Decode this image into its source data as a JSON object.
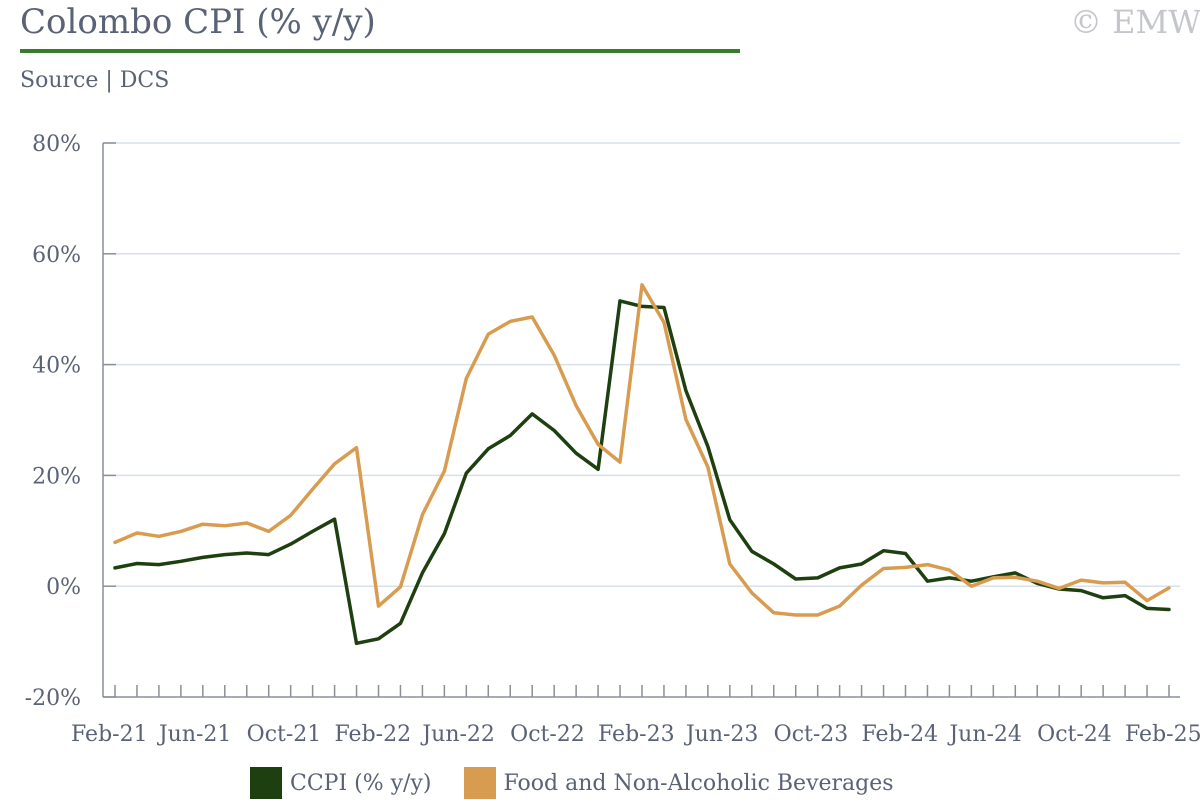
{
  "title": "Colombo CPI (% y/y)",
  "source": "Source | DCS",
  "copyright": "© EMW",
  "colors": {
    "ccpi": "#1e4010",
    "food": "#d89c50",
    "grid": "#d8e0ea",
    "axis": "#8a8f9a",
    "text": "#5a6275",
    "title_rule": "#3a7a2e"
  },
  "chart_data": {
    "type": "line",
    "title": "Colombo CPI (% y/y)",
    "xlabel": "",
    "ylabel": "",
    "ylim": [
      -20,
      80
    ],
    "y_ticks": [
      -20,
      0,
      20,
      40,
      60,
      80
    ],
    "y_tick_labels": [
      "-20%",
      "0%",
      "20%",
      "40%",
      "60%",
      "80%"
    ],
    "x_tick_labels": [
      "Feb-21",
      "Jun-21",
      "Oct-21",
      "Feb-22",
      "Jun-22",
      "Oct-22",
      "Feb-23",
      "Jun-23",
      "Oct-23",
      "Feb-24",
      "Jun-24",
      "Oct-24",
      "Feb-25"
    ],
    "grid": true,
    "legend_position": "bottom",
    "x": [
      "Feb-21",
      "Mar-21",
      "Apr-21",
      "May-21",
      "Jun-21",
      "Jul-21",
      "Aug-21",
      "Sep-21",
      "Oct-21",
      "Nov-21",
      "Dec-21",
      "Jan-22",
      "Feb-22",
      "Mar-22",
      "Apr-22",
      "May-22",
      "Jun-22",
      "Jul-22",
      "Aug-22",
      "Sep-22",
      "Oct-22",
      "Nov-22",
      "Dec-22",
      "Jan-23",
      "Feb-23",
      "Mar-23",
      "Apr-23",
      "May-23",
      "Jun-23",
      "Jul-23",
      "Aug-23",
      "Sep-23",
      "Oct-23",
      "Nov-23",
      "Dec-23",
      "Jan-24",
      "Feb-24",
      "Mar-24",
      "Apr-24",
      "May-24",
      "Jun-24",
      "Jul-24",
      "Aug-24",
      "Sep-24",
      "Oct-24",
      "Nov-24",
      "Dec-24",
      "Jan-25",
      "Feb-25"
    ],
    "series": [
      {
        "name": "CCPI (% y/y)",
        "color": "#1e4010",
        "values": [
          3.3,
          4.1,
          3.9,
          4.5,
          5.2,
          5.7,
          6.0,
          5.7,
          7.6,
          9.9,
          12.1,
          -10.3,
          -9.5,
          -6.7,
          2.4,
          9.5,
          20.4,
          24.8,
          27.2,
          31.1,
          28.1,
          24.0,
          21.1,
          51.5,
          50.5,
          50.3,
          35.3,
          25.2,
          12.0,
          6.3,
          4.0,
          1.3,
          1.5,
          3.3,
          4.0,
          6.4,
          5.9,
          0.9,
          1.5,
          0.9,
          1.7,
          2.4,
          0.5,
          -0.5,
          -0.8,
          -2.1,
          -1.7,
          -4.0,
          -4.2
        ]
      },
      {
        "name": "Food and Non-Alcoholic Beverages",
        "color": "#d89c50",
        "values": [
          7.9,
          9.6,
          9.0,
          9.9,
          11.2,
          10.9,
          11.4,
          9.9,
          12.8,
          17.5,
          22.1,
          25.0,
          -3.6,
          -0.1,
          12.9,
          20.8,
          37.5,
          45.5,
          47.8,
          48.6,
          41.7,
          32.6,
          25.6,
          22.4,
          54.4,
          47.6,
          30.1,
          21.5,
          4.0,
          -1.2,
          -4.8,
          -5.2,
          -5.2,
          -3.6,
          0.2,
          3.2,
          3.4,
          3.9,
          2.9,
          0.0,
          1.5,
          1.6,
          0.9,
          -0.4,
          1.1,
          0.6,
          0.7,
          -2.6,
          -0.3
        ]
      }
    ]
  },
  "legend": {
    "items": [
      {
        "label": "CCPI (% y/y)",
        "color": "#1e4010"
      },
      {
        "label": "Food and Non-Alcoholic Beverages",
        "color": "#d89c50"
      }
    ]
  }
}
